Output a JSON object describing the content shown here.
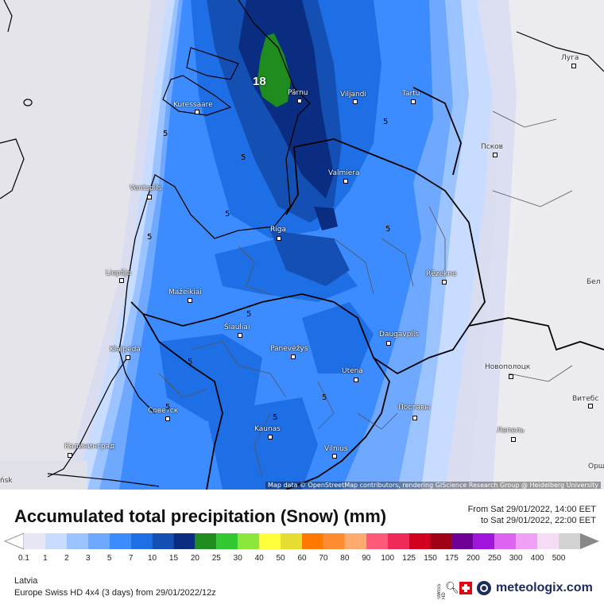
{
  "map": {
    "attribution": "Map data © OpenStreetMap contributors, rendering GIScience Research Group @ Heidelberg University",
    "max_value": "18",
    "cities": [
      {
        "name": "Kuressaare",
        "style": "light"
      },
      {
        "name": "Pärnu",
        "style": "light"
      },
      {
        "name": "Viljandi",
        "style": "light"
      },
      {
        "name": "Tartu",
        "style": "light"
      },
      {
        "name": "Луга",
        "style": "dark"
      },
      {
        "name": "Псков",
        "style": "dark"
      },
      {
        "name": "Valmiera",
        "style": "light"
      },
      {
        "name": "Ventspils",
        "style": "light"
      },
      {
        "name": "Riga",
        "style": "light"
      },
      {
        "name": "Rēzekne",
        "style": "light"
      },
      {
        "name": "Liepāja",
        "style": "light"
      },
      {
        "name": "Mažeikiai",
        "style": "light"
      },
      {
        "name": "Šiauliai",
        "style": "light"
      },
      {
        "name": "Panevėžys",
        "style": "light"
      },
      {
        "name": "Daugavpils",
        "style": "light"
      },
      {
        "name": "Klaipėda",
        "style": "light"
      },
      {
        "name": "Utena",
        "style": "light"
      },
      {
        "name": "Новополоцк",
        "style": "dark"
      },
      {
        "name": "Советск",
        "style": "light"
      },
      {
        "name": "Поставы",
        "style": "light"
      },
      {
        "name": "Витебс",
        "style": "dark"
      },
      {
        "name": "Kaunas",
        "style": "light"
      },
      {
        "name": "Лепель",
        "style": "light"
      },
      {
        "name": "Калининград",
        "style": "light"
      },
      {
        "name": "Vilnius",
        "style": "light"
      },
      {
        "name": "Бел",
        "style": "dark"
      },
      {
        "name": "Орш",
        "style": "dark"
      },
      {
        "name": "ńsk",
        "style": "dark"
      }
    ],
    "contour_labels": [
      "5",
      "5",
      "5",
      "5",
      "5",
      "5",
      "5",
      "5",
      "5",
      "5",
      "5"
    ]
  },
  "legend": {
    "title": "Accumulated total precipitation (Snow) (mm)",
    "from": "From Sat 29/01/2022, 14:00 EET",
    "to": "to Sat 29/01/2022, 22:00 EET",
    "scale": [
      {
        "label": "0.1",
        "color": "#e6e6f5"
      },
      {
        "label": "1",
        "color": "#c8dcff"
      },
      {
        "label": "2",
        "color": "#9bc3ff"
      },
      {
        "label": "3",
        "color": "#6ea8ff"
      },
      {
        "label": "5",
        "color": "#3c8cff"
      },
      {
        "label": "7",
        "color": "#1e6ee6"
      },
      {
        "label": "10",
        "color": "#1450b4"
      },
      {
        "label": "15",
        "color": "#0a2d82"
      },
      {
        "label": "20",
        "color": "#1e8c1e"
      },
      {
        "label": "25",
        "color": "#32c832"
      },
      {
        "label": "30",
        "color": "#8ce63c"
      },
      {
        "label": "40",
        "color": "#ffff3c"
      },
      {
        "label": "50",
        "color": "#e6dc32"
      },
      {
        "label": "60",
        "color": "#ff7800"
      },
      {
        "label": "70",
        "color": "#ff8c32"
      },
      {
        "label": "80",
        "color": "#ffaa6e"
      },
      {
        "label": "90",
        "color": "#ff5a78"
      },
      {
        "label": "100",
        "color": "#f0285a"
      },
      {
        "label": "125",
        "color": "#d2001e"
      },
      {
        "label": "150",
        "color": "#a00014"
      },
      {
        "label": "175",
        "color": "#6e0096"
      },
      {
        "label": "200",
        "color": "#a014dc"
      },
      {
        "label": "250",
        "color": "#dc64f0"
      },
      {
        "label": "300",
        "color": "#f0a0f5"
      },
      {
        "label": "400",
        "color": "#f5dcf5"
      },
      {
        "label": "500",
        "color": "#d2d2d2"
      }
    ],
    "region": "Latvia",
    "model": "Europe Swiss HD 4x4 (3 days) from 29/01/2022/12z",
    "brand": "meteologix.com",
    "brand_sub": "SWISS HD"
  }
}
